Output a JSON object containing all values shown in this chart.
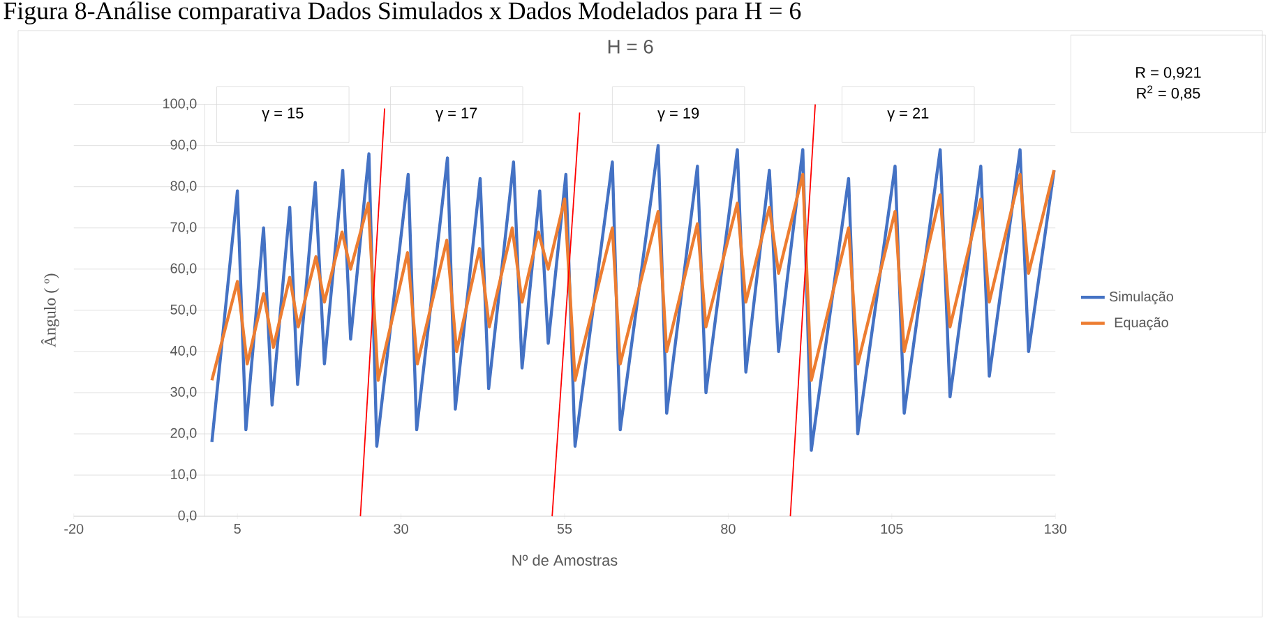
{
  "chart_data": {
    "type": "line",
    "title": "H = 6",
    "xlabel": "Nº de Amostras",
    "ylabel": "Ângulo ( º)",
    "xlim": [
      -20,
      130
    ],
    "xticks": [
      -20,
      5,
      30,
      55,
      80,
      105,
      130
    ],
    "ylim": [
      0,
      100
    ],
    "yticks": [
      {
        "value": 0,
        "label": "0,0"
      },
      {
        "value": 10,
        "label": "10,0"
      },
      {
        "value": 20,
        "label": "20,0"
      },
      {
        "value": 30,
        "label": "30,0"
      },
      {
        "value": 40,
        "label": "40,0"
      },
      {
        "value": 50,
        "label": "50,0"
      },
      {
        "value": 60,
        "label": "60,0"
      },
      {
        "value": 70,
        "label": "70,0"
      },
      {
        "value": 80,
        "label": "80,0"
      },
      {
        "value": 90,
        "label": "90,0"
      },
      {
        "value": 100,
        "label": "100,0"
      }
    ],
    "grid": "y",
    "legend": "right",
    "series": [
      {
        "name": "Simulação",
        "color": "#4472c4",
        "x": [
          1.1,
          5,
          6.3,
          9,
          10.3,
          13,
          14.2,
          16.9,
          18.3,
          21.1,
          22.3,
          25.1,
          26.3,
          31.1,
          32.4,
          37.1,
          38.3,
          42.1,
          43.4,
          47.2,
          48.5,
          51.2,
          52.5,
          55.2,
          56.6,
          62.3,
          63.5,
          69.3,
          70.6,
          75.3,
          76.6,
          81.4,
          82.7,
          86.3,
          87.7,
          91.4,
          92.7,
          98.4,
          99.8,
          105.5,
          106.9,
          112.4,
          113.9,
          118.6,
          119.9,
          124.6,
          125.9,
          129.8
        ],
        "values": [
          18,
          79,
          21,
          70,
          27,
          75,
          32,
          81,
          37,
          84,
          43,
          88,
          17,
          83,
          21,
          87,
          26,
          82,
          31,
          86,
          36,
          79,
          42,
          83,
          17,
          86,
          21,
          90,
          25,
          85,
          30,
          89,
          35,
          84,
          40,
          89,
          16,
          82,
          20,
          85,
          25,
          89,
          29,
          85,
          34,
          89,
          40,
          84
        ]
      },
      {
        "name": "Equação",
        "color": "#ed7d31",
        "x": [
          1.1,
          5,
          6.5,
          9,
          10.5,
          13,
          14.3,
          17,
          18.3,
          21,
          22.3,
          25,
          26.5,
          31,
          32.5,
          37,
          38.5,
          42,
          43.5,
          47,
          48.5,
          51,
          52.5,
          55,
          56.6,
          62.3,
          63.5,
          69.3,
          70.6,
          75.3,
          76.6,
          81.4,
          82.7,
          86.3,
          87.7,
          91.4,
          92.7,
          98.4,
          99.8,
          105.5,
          106.9,
          112.4,
          113.9,
          118.6,
          119.9,
          124.6,
          125.9,
          129.8
        ],
        "values": [
          33,
          57,
          37,
          54,
          41,
          58,
          46,
          63,
          52,
          69,
          60,
          76,
          33,
          64,
          37,
          67,
          40,
          65,
          46,
          70,
          52,
          69,
          60,
          77,
          33,
          70,
          37,
          74,
          40,
          71,
          46,
          76,
          52,
          75,
          59,
          83,
          33,
          70,
          37,
          74,
          40,
          78,
          46,
          77,
          52,
          83,
          59,
          84
        ]
      },
      {
        "type": "line",
        "color": "#ff0000",
        "x": [
          23.8,
          27.5
        ],
        "values": [
          0,
          99
        ]
      },
      {
        "type": "line",
        "color": "#ff0000",
        "x": [
          53.1,
          57.3
        ],
        "values": [
          0,
          98
        ]
      },
      {
        "type": "line",
        "color": "#ff0000",
        "x": [
          89.5,
          93.3
        ],
        "values": [
          0,
          100
        ]
      }
    ],
    "annotations": [
      "γ = 15",
      "γ = 17",
      "γ = 19",
      "γ = 21",
      "R = 0,921",
      "R$^{2}$ = 0,85",
      "Figura 8-Análise comparativa Dados Simulados x Dados Modelados para H = 6"
    ]
  }
}
